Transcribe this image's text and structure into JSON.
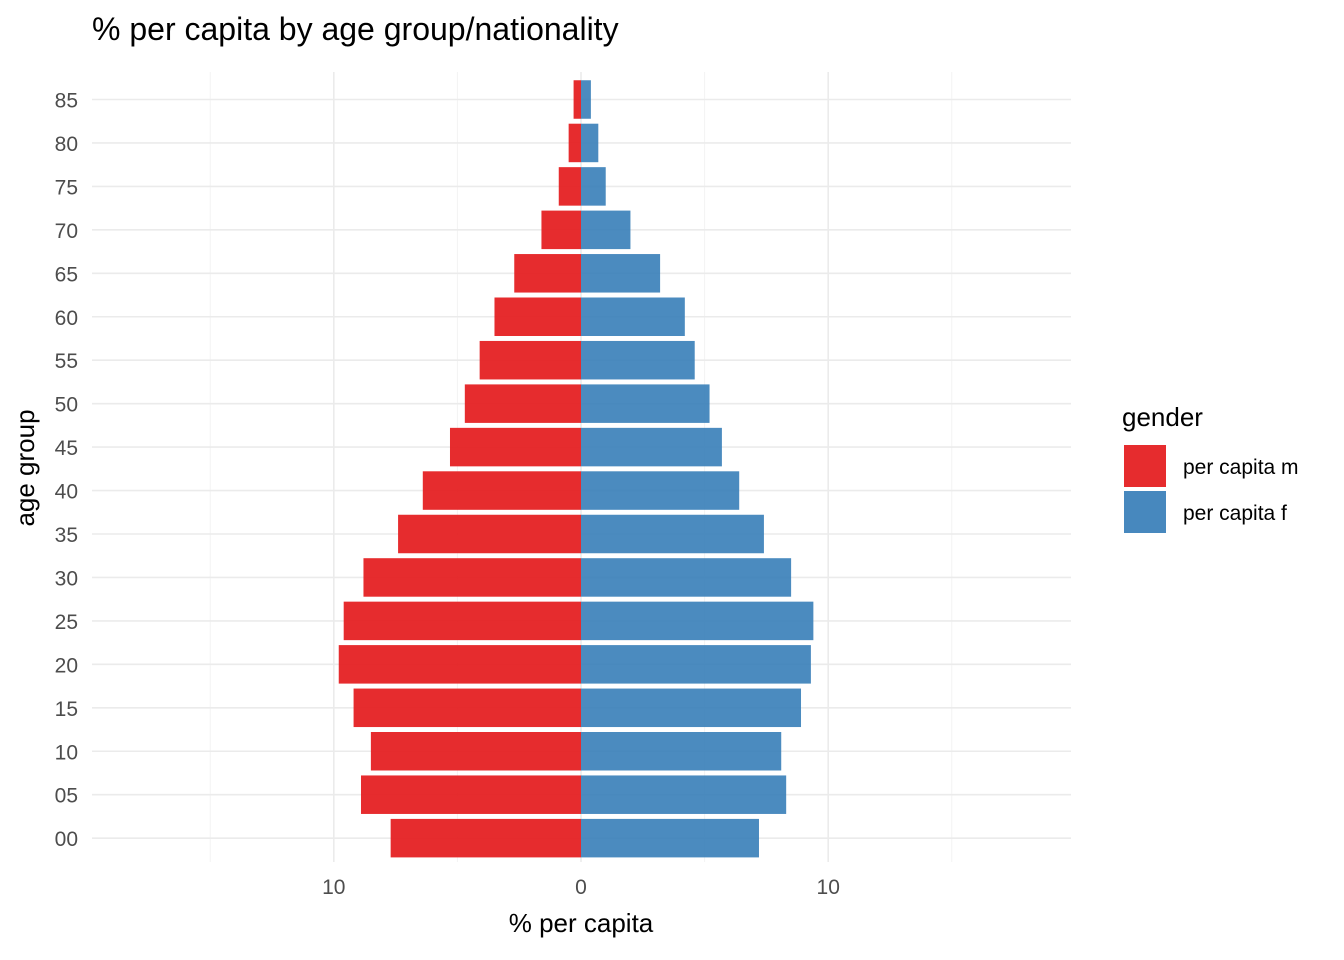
{
  "chart_data": {
    "type": "bar",
    "orientation": "horizontal",
    "layout": "population-pyramid",
    "title": "% per capita by age group/nationality",
    "xlabel": "% per capita",
    "ylabel": "age group",
    "categories": [
      "00",
      "05",
      "10",
      "15",
      "20",
      "25",
      "30",
      "35",
      "40",
      "45",
      "50",
      "55",
      "60",
      "65",
      "70",
      "75",
      "80",
      "85"
    ],
    "x_ticks": [
      {
        "value": -10,
        "label": "10"
      },
      {
        "value": 0,
        "label": "0"
      },
      {
        "value": 10,
        "label": "10"
      }
    ],
    "xlim": [
      -19.8,
      19.8
    ],
    "grid": true,
    "legend": {
      "title": "gender",
      "position": "right"
    },
    "series": [
      {
        "name": "per capita m",
        "color": "#E41A1C",
        "side": "left",
        "values": [
          7.7,
          8.9,
          8.5,
          9.2,
          9.8,
          9.6,
          8.8,
          7.4,
          6.4,
          5.3,
          4.7,
          4.1,
          3.5,
          2.7,
          1.6,
          0.9,
          0.5,
          0.3
        ]
      },
      {
        "name": "per capita f",
        "color": "#377EB8",
        "side": "right",
        "values": [
          7.2,
          8.3,
          8.1,
          8.9,
          9.3,
          9.4,
          8.5,
          7.4,
          6.4,
          5.7,
          5.2,
          4.6,
          4.2,
          3.2,
          2.0,
          1.0,
          0.7,
          0.4
        ]
      }
    ]
  }
}
